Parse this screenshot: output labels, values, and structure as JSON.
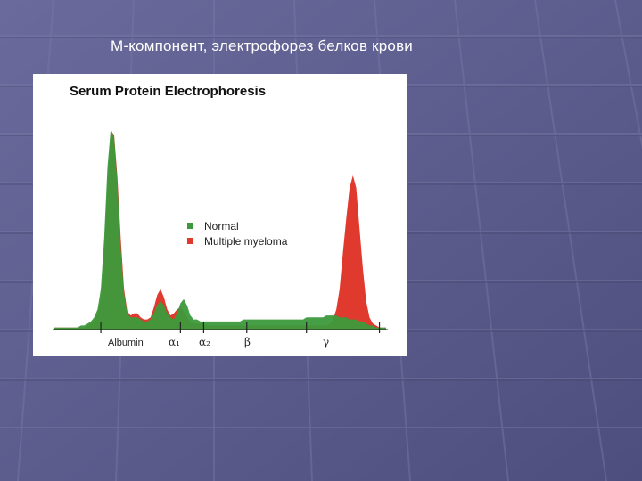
{
  "slide": {
    "title": "М-компонент, электрофорез белков крови"
  },
  "colors": {
    "background": "#5b5b8c",
    "normal": "#3c9a3c",
    "myeloma": "#e03a2f"
  },
  "chart_data": {
    "type": "area",
    "title": "Serum Protein Electrophoresis",
    "xlabel": "",
    "ylabel": "",
    "x": [
      0,
      1,
      2,
      3,
      4,
      5,
      6,
      7,
      8,
      9,
      10,
      11,
      12,
      13,
      14,
      15,
      16,
      17,
      18,
      19,
      20,
      21,
      22,
      23,
      24,
      25,
      26,
      27,
      28,
      29,
      30,
      31,
      32,
      33,
      34,
      35,
      36,
      37,
      38,
      39,
      40,
      41,
      42,
      43,
      44,
      45,
      46,
      47,
      48,
      49,
      50,
      51,
      52,
      53,
      54,
      55,
      56,
      57,
      58,
      59,
      60,
      61,
      62,
      63,
      64,
      65,
      66,
      67,
      68,
      69,
      70,
      71,
      72,
      73,
      74,
      75,
      76,
      77,
      78,
      79,
      80,
      81,
      82,
      83,
      84,
      85,
      86,
      87,
      88,
      89,
      90,
      91,
      92,
      93,
      94,
      95,
      96,
      97,
      98,
      99,
      100
    ],
    "series": [
      {
        "name": "Normal",
        "color": "#3c9a3c",
        "values": [
          1,
          1,
          1,
          1,
          1,
          1,
          1,
          1,
          2,
          2,
          3,
          4,
          6,
          10,
          20,
          45,
          80,
          99,
          95,
          72,
          40,
          18,
          8,
          6,
          6,
          6,
          5,
          4,
          4,
          5,
          8,
          12,
          14,
          12,
          8,
          6,
          5,
          8,
          13,
          15,
          12,
          7,
          5,
          5,
          4,
          4,
          4,
          4,
          4,
          4,
          4,
          4,
          4,
          4,
          4,
          4,
          4,
          5,
          5,
          5,
          5,
          5,
          5,
          5,
          5,
          5,
          5,
          5,
          5,
          5,
          5,
          5,
          5,
          5,
          5,
          5,
          6,
          6,
          6,
          6,
          6,
          6,
          7,
          7,
          7,
          7,
          6,
          6,
          6,
          5,
          5,
          5,
          4,
          4,
          3,
          2,
          2,
          1,
          1,
          1,
          1
        ]
      },
      {
        "name": "Multiple myeloma",
        "color": "#e03a2f",
        "values": [
          1,
          1,
          1,
          1,
          1,
          1,
          1,
          1,
          1,
          1,
          2,
          3,
          5,
          8,
          16,
          38,
          72,
          98,
          96,
          75,
          45,
          20,
          9,
          7,
          8,
          8,
          6,
          5,
          5,
          6,
          11,
          17,
          20,
          16,
          10,
          7,
          8,
          10,
          11,
          9,
          6,
          4,
          3,
          3,
          3,
          3,
          2,
          2,
          2,
          2,
          2,
          2,
          2,
          2,
          2,
          2,
          2,
          2,
          2,
          2,
          2,
          2,
          2,
          2,
          2,
          2,
          2,
          2,
          2,
          2,
          2,
          2,
          2,
          2,
          2,
          2,
          2,
          2,
          2,
          2,
          2,
          2,
          2,
          3,
          5,
          10,
          20,
          38,
          55,
          70,
          76,
          70,
          50,
          30,
          14,
          6,
          3,
          2,
          1,
          1,
          1
        ]
      }
    ],
    "ylim": [
      0,
      105
    ],
    "grid": false,
    "legend": "center-right",
    "zone_labels": [
      "Albumin",
      "α₁",
      "α₂",
      "β",
      "γ"
    ]
  }
}
